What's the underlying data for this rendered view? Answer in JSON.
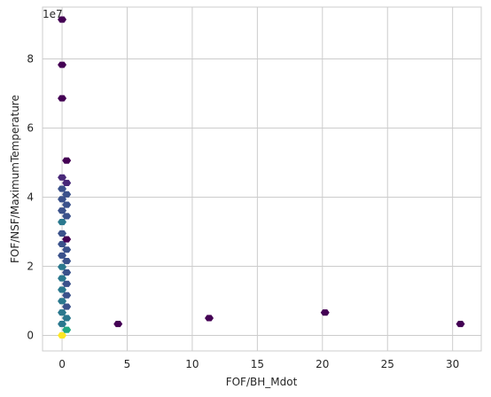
{
  "chart_data": {
    "type": "scatter",
    "title": "",
    "xlabel": "FOF/BH_Mdot",
    "ylabel": "FOF/NSF/MaximumTemperature",
    "y_offset_label": "1e7",
    "xlim": [
      -1.5,
      32.2
    ],
    "ylim": [
      -0.45,
      9.5
    ],
    "x_ticks": [
      0,
      5,
      10,
      15,
      20,
      25,
      30
    ],
    "y_ticks": [
      0,
      2,
      4,
      6,
      8
    ],
    "grid": true,
    "y_scale": 10000000,
    "series": [
      {
        "values": [
          {
            "x": 0.0,
            "y": 0.0,
            "c": "#fde725"
          },
          {
            "x": 0.35,
            "y": 0.16,
            "c": "#22a884"
          },
          {
            "x": 0.0,
            "y": 0.33,
            "c": "#2a788e"
          },
          {
            "x": 0.35,
            "y": 0.5,
            "c": "#2a788e"
          },
          {
            "x": 0.0,
            "y": 0.66,
            "c": "#2a788e"
          },
          {
            "x": 0.35,
            "y": 0.83,
            "c": "#3b528b"
          },
          {
            "x": 0.0,
            "y": 0.99,
            "c": "#2a788e"
          },
          {
            "x": 0.35,
            "y": 1.16,
            "c": "#3b528b"
          },
          {
            "x": 0.0,
            "y": 1.32,
            "c": "#2a788e"
          },
          {
            "x": 0.35,
            "y": 1.49,
            "c": "#3b528b"
          },
          {
            "x": 0.0,
            "y": 1.65,
            "c": "#2a788e"
          },
          {
            "x": 0.35,
            "y": 1.82,
            "c": "#3b528b"
          },
          {
            "x": 0.0,
            "y": 1.98,
            "c": "#2a788e"
          },
          {
            "x": 0.35,
            "y": 2.15,
            "c": "#3b528b"
          },
          {
            "x": 0.0,
            "y": 2.31,
            "c": "#3b528b"
          },
          {
            "x": 0.35,
            "y": 2.48,
            "c": "#3b528b"
          },
          {
            "x": 0.0,
            "y": 2.64,
            "c": "#3b528b"
          },
          {
            "x": 0.35,
            "y": 2.78,
            "c": "#440154"
          },
          {
            "x": 0.0,
            "y": 2.95,
            "c": "#3b528b"
          },
          {
            "x": 0.0,
            "y": 3.28,
            "c": "#2a788e"
          },
          {
            "x": 0.35,
            "y": 3.45,
            "c": "#3b528b"
          },
          {
            "x": 0.0,
            "y": 3.61,
            "c": "#3b528b"
          },
          {
            "x": 0.35,
            "y": 3.78,
            "c": "#3b528b"
          },
          {
            "x": 0.0,
            "y": 3.94,
            "c": "#3b528b"
          },
          {
            "x": 0.35,
            "y": 4.08,
            "c": "#3b528b"
          },
          {
            "x": 0.0,
            "y": 4.24,
            "c": "#3b528b"
          },
          {
            "x": 0.35,
            "y": 4.41,
            "c": "#482878"
          },
          {
            "x": 0.0,
            "y": 4.57,
            "c": "#482878"
          },
          {
            "x": 0.35,
            "y": 5.06,
            "c": "#440154"
          },
          {
            "x": 0.0,
            "y": 6.86,
            "c": "#440154"
          },
          {
            "x": 0.0,
            "y": 7.83,
            "c": "#440154"
          },
          {
            "x": 0.0,
            "y": 9.14,
            "c": "#440154"
          },
          {
            "x": 4.3,
            "y": 0.33,
            "c": "#440154"
          },
          {
            "x": 11.3,
            "y": 0.5,
            "c": "#440154"
          },
          {
            "x": 20.2,
            "y": 0.66,
            "c": "#440154"
          },
          {
            "x": 30.6,
            "y": 0.33,
            "c": "#440154"
          }
        ]
      }
    ]
  }
}
